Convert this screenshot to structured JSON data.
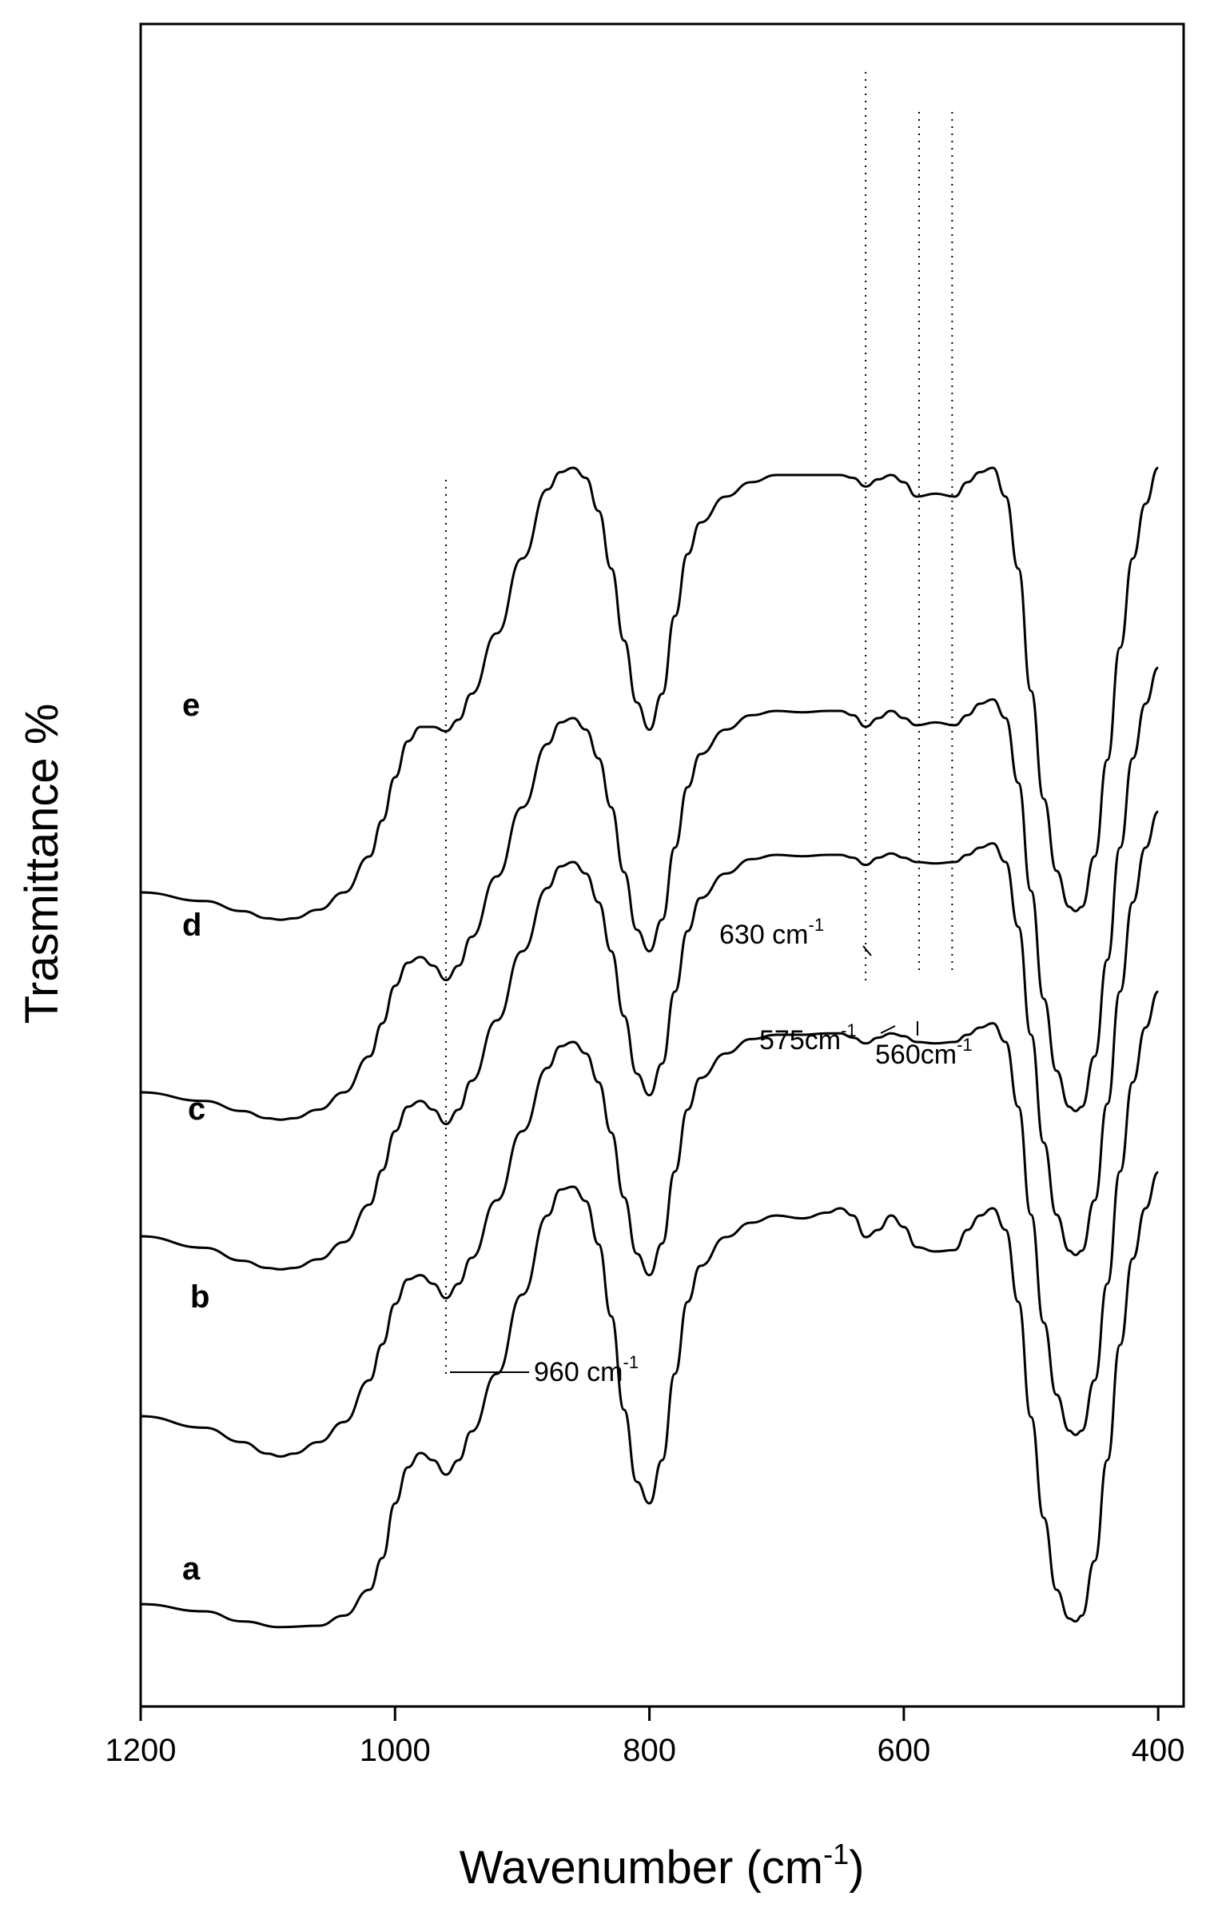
{
  "chart_data": {
    "type": "line",
    "title": "",
    "xlabel": "Wavenumber (cm",
    "xlabel_sup": "-1",
    "xlabel_close": ")",
    "ylabel": "Trasmittance %",
    "xlim": [
      1200,
      380
    ],
    "x_reversed": true,
    "x_ticks": [
      1200,
      1000,
      800,
      600,
      400
    ],
    "x_tick_labels": [
      "1200",
      "1000",
      "800",
      "600",
      "400"
    ],
    "y_ticks": [],
    "grid": false,
    "legend": "none",
    "line_color": "#000000",
    "series": [
      {
        "name": "a",
        "x": [
          1200,
          1150,
          1120,
          1090,
          1060,
          1040,
          1020,
          1010,
          1000,
          990,
          980,
          970,
          960,
          950,
          940,
          920,
          900,
          880,
          870,
          860,
          850,
          840,
          830,
          820,
          810,
          800,
          790,
          780,
          770,
          760,
          740,
          720,
          700,
          680,
          660,
          650,
          640,
          630,
          620,
          610,
          600,
          590,
          575,
          560,
          550,
          540,
          530,
          520,
          510,
          500,
          490,
          480,
          470,
          465,
          460,
          450,
          440,
          430,
          420,
          410,
          400
        ],
        "y": [
          30,
          25,
          18,
          14,
          15,
          22,
          40,
          62,
          100,
          125,
          135,
          130,
          120,
          130,
          150,
          190,
          245,
          300,
          318,
          320,
          310,
          280,
          230,
          165,
          115,
          100,
          130,
          190,
          240,
          265,
          285,
          295,
          300,
          298,
          302,
          305,
          300,
          285,
          290,
          300,
          292,
          278,
          275,
          276,
          290,
          300,
          305,
          290,
          240,
          160,
          90,
          40,
          20,
          18,
          22,
          60,
          130,
          210,
          270,
          305,
          330
        ]
      },
      {
        "name": "b",
        "x": [
          1200,
          1150,
          1120,
          1100,
          1090,
          1080,
          1060,
          1040,
          1020,
          1010,
          1000,
          990,
          980,
          970,
          960,
          950,
          940,
          920,
          900,
          880,
          870,
          860,
          850,
          840,
          830,
          820,
          810,
          800,
          790,
          780,
          770,
          760,
          740,
          720,
          700,
          680,
          660,
          650,
          640,
          630,
          620,
          610,
          600,
          590,
          575,
          560,
          550,
          540,
          530,
          520,
          510,
          500,
          490,
          480,
          470,
          465,
          460,
          450,
          440,
          430,
          420,
          410,
          400
        ],
        "y": [
          30,
          22,
          12,
          4,
          2,
          4,
          12,
          26,
          55,
          80,
          108,
          125,
          128,
          122,
          112,
          122,
          140,
          180,
          228,
          272,
          287,
          290,
          282,
          262,
          227,
          182,
          143,
          128,
          150,
          200,
          243,
          265,
          282,
          292,
          295,
          295,
          296,
          296,
          293,
          289,
          293,
          296,
          294,
          290,
          289,
          290,
          295,
          300,
          303,
          290,
          245,
          170,
          95,
          45,
          20,
          17,
          20,
          55,
          122,
          200,
          262,
          300,
          325
        ]
      },
      {
        "name": "c",
        "x": [
          1200,
          1150,
          1120,
          1100,
          1090,
          1080,
          1060,
          1040,
          1020,
          1010,
          1000,
          990,
          980,
          970,
          960,
          950,
          940,
          920,
          900,
          880,
          870,
          860,
          850,
          840,
          830,
          820,
          810,
          800,
          790,
          780,
          770,
          760,
          740,
          720,
          700,
          680,
          660,
          650,
          640,
          630,
          620,
          610,
          600,
          590,
          575,
          560,
          550,
          540,
          530,
          520,
          510,
          500,
          490,
          480,
          470,
          465,
          460,
          450,
          440,
          430,
          420,
          410,
          400
        ],
        "y": [
          30,
          22,
          13,
          8,
          7,
          8,
          14,
          26,
          52,
          76,
          103,
          120,
          124,
          118,
          108,
          118,
          138,
          180,
          228,
          272,
          287,
          290,
          282,
          262,
          228,
          183,
          143,
          128,
          150,
          200,
          242,
          265,
          282,
          292,
          295,
          294,
          295,
          295,
          293,
          288,
          293,
          296,
          293,
          290,
          289,
          290,
          295,
          300,
          303,
          290,
          245,
          170,
          95,
          45,
          20,
          17,
          20,
          55,
          122,
          200,
          262,
          300,
          325
        ]
      },
      {
        "name": "d",
        "x": [
          1200,
          1150,
          1120,
          1100,
          1090,
          1080,
          1060,
          1040,
          1020,
          1010,
          1000,
          990,
          980,
          970,
          960,
          950,
          940,
          920,
          900,
          880,
          870,
          860,
          850,
          840,
          830,
          820,
          810,
          800,
          790,
          780,
          770,
          760,
          740,
          720,
          700,
          680,
          660,
          650,
          640,
          630,
          620,
          610,
          600,
          590,
          575,
          560,
          550,
          540,
          530,
          520,
          510,
          500,
          490,
          480,
          470,
          465,
          460,
          450,
          440,
          430,
          420,
          410,
          400
        ],
        "y": [
          30,
          24,
          17,
          12,
          11,
          12,
          18,
          30,
          55,
          78,
          104,
          120,
          124,
          118,
          108,
          118,
          138,
          180,
          228,
          272,
          287,
          290,
          282,
          262,
          228,
          183,
          143,
          128,
          150,
          200,
          242,
          265,
          282,
          292,
          295,
          294,
          295,
          295,
          292,
          284,
          290,
          295,
          290,
          285,
          287,
          285,
          292,
          300,
          303,
          290,
          245,
          170,
          95,
          45,
          20,
          17,
          20,
          55,
          122,
          200,
          262,
          300,
          325
        ]
      },
      {
        "name": "e",
        "x": [
          1200,
          1150,
          1120,
          1100,
          1090,
          1080,
          1060,
          1040,
          1020,
          1010,
          1000,
          990,
          980,
          970,
          960,
          950,
          940,
          920,
          900,
          880,
          870,
          860,
          850,
          840,
          830,
          820,
          810,
          800,
          790,
          780,
          770,
          760,
          740,
          720,
          700,
          680,
          660,
          650,
          640,
          630,
          620,
          610,
          600,
          590,
          575,
          560,
          550,
          540,
          530,
          520,
          510,
          500,
          490,
          480,
          470,
          465,
          460,
          450,
          440,
          430,
          420,
          410,
          400
        ],
        "y": [
          30,
          24,
          17,
          12,
          11,
          12,
          18,
          30,
          55,
          80,
          110,
          135,
          145,
          145,
          142,
          150,
          168,
          210,
          262,
          310,
          322,
          325,
          318,
          295,
          255,
          205,
          162,
          143,
          168,
          222,
          265,
          287,
          305,
          315,
          320,
          320,
          320,
          320,
          318,
          312,
          317,
          320,
          315,
          305,
          307,
          305,
          315,
          322,
          325,
          305,
          255,
          170,
          95,
          45,
          20,
          17,
          20,
          55,
          122,
          200,
          262,
          300,
          325
        ]
      }
    ],
    "annotations": [
      {
        "text": "960 cm",
        "sup": "-1"
      },
      {
        "text": "630 cm",
        "sup": "-1"
      },
      {
        "text": "575cm",
        "sup": "-1"
      },
      {
        "text": "560cm",
        "sup": "-1"
      }
    ],
    "marker_lines_x": [
      960,
      630,
      588,
      562
    ]
  }
}
